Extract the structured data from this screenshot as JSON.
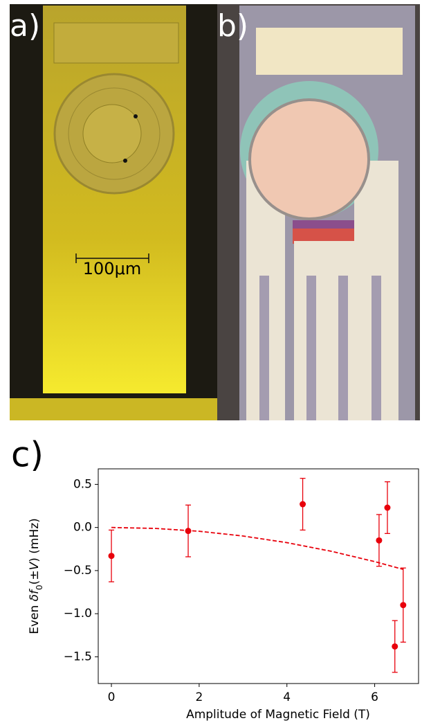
{
  "panels": {
    "a": "a)",
    "b": "b)",
    "scale_bar": "100μm"
  },
  "chart_data": {
    "type": "scatter",
    "panel_label": "c)",
    "x_label": "Amplitude of Magnetic Field (T)",
    "y_label": [
      "Even ",
      "δf",
      "0",
      "(±",
      "V",
      ") (mHz)"
    ],
    "x": [
      0,
      1.75,
      4.36,
      6.1,
      6.29,
      6.46,
      6.65
    ],
    "series": [
      {
        "color": "#e8000b",
        "values": [
          -0.33,
          -0.04,
          0.27,
          -0.15,
          0.23,
          -1.38,
          -0.9
        ],
        "errors": [
          0.3,
          0.3,
          0.3,
          0.3,
          0.3,
          0.3,
          0.43
        ]
      }
    ],
    "fit": {
      "color": "#e8000b",
      "dashed": true,
      "x": [
        0,
        1,
        2,
        3,
        4,
        5,
        6,
        6.65
      ],
      "values": [
        0,
        -0.011,
        -0.044,
        -0.099,
        -0.176,
        -0.275,
        -0.396,
        -0.486
      ]
    },
    "xlim": [
      -0.3,
      7.0
    ],
    "ylim": [
      -1.81,
      0.68
    ],
    "xticks": [
      0,
      2,
      4,
      6
    ],
    "yticks": [
      0.5,
      {
        "value": 0,
        "label": "0.0"
      },
      {
        "value": -0.5,
        "label": "−0.5"
      },
      {
        "value": -1,
        "label": "−1.0"
      },
      {
        "value": -1.5,
        "label": "−1.5"
      }
    ]
  }
}
